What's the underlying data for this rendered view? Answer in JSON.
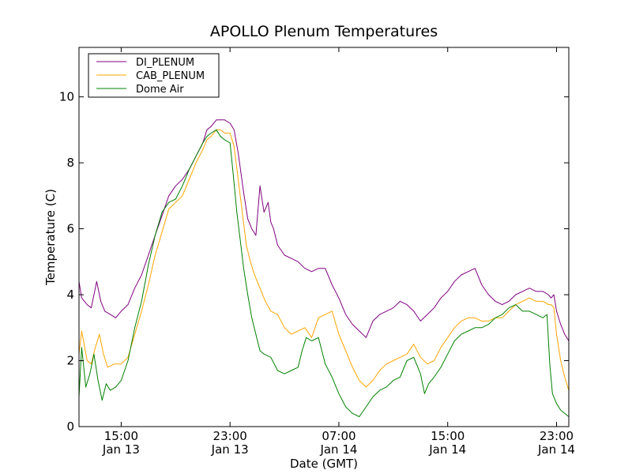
{
  "chart_data": {
    "type": "line",
    "title": "APOLLO Plenum Temperatures",
    "xlabel": "Date (GMT)",
    "ylabel": "Temperature (C)",
    "xlim": [
      11.9,
      47.9
    ],
    "ylim": [
      0,
      11.5
    ],
    "grid": false,
    "legend_position": "top-left",
    "y_ticks": [
      0,
      2,
      4,
      6,
      8,
      10
    ],
    "x_ticks": [
      {
        "x": 15,
        "time": "15:00",
        "date": "Jan 13"
      },
      {
        "x": 23,
        "time": "23:00",
        "date": "Jan 13"
      },
      {
        "x": 31,
        "time": "07:00",
        "date": "Jan 14"
      },
      {
        "x": 39,
        "time": "15:00",
        "date": "Jan 14"
      },
      {
        "x": 47,
        "time": "23:00",
        "date": "Jan 14"
      }
    ],
    "series": [
      {
        "name": "DI_PLENUM",
        "color": "#800080",
        "x": [
          11.9,
          12.1,
          12.5,
          12.8,
          13.2,
          13.5,
          13.8,
          14.2,
          14.6,
          15.0,
          15.5,
          16.0,
          16.5,
          17.0,
          17.5,
          18.0,
          18.5,
          19.0,
          19.5,
          20.0,
          20.5,
          21.0,
          21.3,
          21.6,
          22.0,
          22.3,
          22.6,
          23.0,
          23.3,
          23.6,
          24.0,
          24.3,
          24.6,
          24.9,
          25.2,
          25.5,
          25.8,
          26.0,
          26.2,
          26.5,
          27.0,
          27.5,
          28.0,
          28.5,
          29.0,
          29.5,
          30.0,
          30.5,
          31.0,
          31.5,
          32.0,
          32.5,
          33.0,
          33.5,
          34.0,
          34.5,
          35.0,
          35.5,
          36.0,
          36.5,
          37.0,
          37.5,
          38.0,
          38.5,
          39.0,
          39.5,
          40.0,
          40.5,
          41.0,
          41.5,
          42.0,
          42.5,
          43.0,
          43.5,
          44.0,
          44.5,
          45.0,
          45.5,
          46.0,
          46.4,
          46.6,
          46.8,
          47.0,
          47.3,
          47.6,
          47.9
        ],
        "y": [
          4.4,
          3.9,
          3.7,
          3.6,
          4.4,
          3.8,
          3.5,
          3.4,
          3.3,
          3.5,
          3.7,
          4.2,
          4.6,
          5.2,
          5.8,
          6.4,
          7.0,
          7.3,
          7.5,
          7.8,
          8.2,
          8.6,
          9.0,
          9.1,
          9.3,
          9.3,
          9.3,
          9.2,
          9.0,
          8.3,
          7.1,
          6.3,
          6.0,
          5.8,
          7.3,
          6.5,
          6.8,
          6.2,
          6.0,
          5.5,
          5.2,
          5.1,
          5.0,
          4.8,
          4.7,
          4.8,
          4.8,
          4.3,
          3.9,
          3.4,
          3.1,
          2.9,
          2.7,
          3.2,
          3.4,
          3.5,
          3.6,
          3.8,
          3.7,
          3.5,
          3.2,
          3.4,
          3.6,
          3.9,
          4.1,
          4.4,
          4.6,
          4.7,
          4.8,
          4.3,
          4.0,
          3.8,
          3.7,
          3.8,
          4.0,
          4.1,
          4.2,
          4.1,
          4.1,
          4.0,
          3.9,
          4.0,
          3.5,
          3.1,
          2.8,
          2.6
        ]
      },
      {
        "name": "CAB_PLENUM",
        "color": "#FFA500",
        "x": [
          11.9,
          12.1,
          12.5,
          12.8,
          13.1,
          13.4,
          13.7,
          14.0,
          14.5,
          15.0,
          15.5,
          16.0,
          16.5,
          17.0,
          17.5,
          18.0,
          18.5,
          19.0,
          19.5,
          20.0,
          20.5,
          21.0,
          21.3,
          21.6,
          22.0,
          22.3,
          22.6,
          23.0,
          23.3,
          23.6,
          23.9,
          24.2,
          24.5,
          24.8,
          25.2,
          25.6,
          26.0,
          26.5,
          27.0,
          27.5,
          28.0,
          28.5,
          29.0,
          29.5,
          30.0,
          30.5,
          31.0,
          31.5,
          32.0,
          32.5,
          33.0,
          33.5,
          34.0,
          34.5,
          35.0,
          35.5,
          36.0,
          36.5,
          37.0,
          37.5,
          38.0,
          38.5,
          39.0,
          39.5,
          40.0,
          40.5,
          41.0,
          41.5,
          42.0,
          42.5,
          43.0,
          43.5,
          44.0,
          44.5,
          45.0,
          45.5,
          46.0,
          46.4,
          46.6,
          46.8,
          47.0,
          47.3,
          47.6,
          47.9
        ],
        "y": [
          2.2,
          2.9,
          2.0,
          1.9,
          2.4,
          2.8,
          2.2,
          1.8,
          1.9,
          1.9,
          2.1,
          2.8,
          3.5,
          4.3,
          5.2,
          5.9,
          6.6,
          6.8,
          7.0,
          7.5,
          8.0,
          8.4,
          8.7,
          8.8,
          9.0,
          9.0,
          8.9,
          8.9,
          8.5,
          7.5,
          6.5,
          5.5,
          5.0,
          4.6,
          4.2,
          3.8,
          3.5,
          3.4,
          3.0,
          2.8,
          2.9,
          3.0,
          2.7,
          3.3,
          3.4,
          3.5,
          2.8,
          2.3,
          1.8,
          1.4,
          1.2,
          1.4,
          1.7,
          1.9,
          2.0,
          2.1,
          2.2,
          2.5,
          2.1,
          1.9,
          2.0,
          2.4,
          2.7,
          3.0,
          3.2,
          3.3,
          3.3,
          3.2,
          3.2,
          3.3,
          3.3,
          3.5,
          3.7,
          3.8,
          3.9,
          3.8,
          3.8,
          3.7,
          3.7,
          3.6,
          2.8,
          2.0,
          1.5,
          1.1
        ]
      },
      {
        "name": "Dome Air",
        "color": "#008000",
        "x": [
          11.9,
          12.1,
          12.4,
          12.7,
          13.0,
          13.3,
          13.6,
          13.9,
          14.2,
          14.6,
          15.0,
          15.5,
          16.0,
          16.5,
          17.0,
          17.5,
          18.0,
          18.5,
          19.0,
          19.5,
          20.0,
          20.5,
          21.0,
          21.3,
          21.6,
          22.0,
          22.3,
          22.6,
          23.0,
          23.2,
          23.5,
          23.8,
          24.0,
          24.3,
          24.6,
          24.9,
          25.2,
          25.5,
          26.0,
          26.5,
          27.0,
          27.5,
          28.0,
          28.3,
          28.6,
          29.0,
          29.5,
          30.0,
          30.5,
          31.0,
          31.5,
          32.0,
          32.5,
          33.0,
          33.5,
          34.0,
          34.5,
          35.0,
          35.5,
          36.0,
          36.5,
          37.0,
          37.3,
          37.6,
          38.0,
          38.5,
          39.0,
          39.5,
          40.0,
          40.5,
          41.0,
          41.5,
          42.0,
          42.5,
          43.0,
          43.5,
          44.0,
          44.5,
          45.0,
          45.5,
          46.0,
          46.3,
          46.5,
          46.7,
          47.0,
          47.3,
          47.6,
          47.9
        ],
        "y": [
          0.9,
          2.4,
          1.2,
          1.6,
          2.2,
          1.4,
          0.8,
          1.3,
          1.1,
          1.2,
          1.4,
          2.0,
          3.0,
          3.8,
          4.9,
          5.8,
          6.5,
          6.8,
          6.9,
          7.3,
          7.8,
          8.2,
          8.6,
          8.8,
          8.9,
          9.0,
          8.8,
          8.7,
          8.6,
          7.8,
          6.5,
          5.5,
          4.8,
          4.0,
          3.3,
          2.8,
          2.3,
          2.2,
          2.1,
          1.7,
          1.6,
          1.7,
          1.8,
          2.3,
          2.7,
          2.6,
          2.7,
          1.9,
          1.5,
          1.0,
          0.6,
          0.4,
          0.3,
          0.6,
          0.9,
          1.1,
          1.2,
          1.4,
          1.5,
          2.0,
          2.1,
          1.6,
          1.0,
          1.3,
          1.5,
          1.8,
          2.2,
          2.6,
          2.8,
          2.9,
          3.0,
          3.0,
          3.1,
          3.3,
          3.4,
          3.6,
          3.7,
          3.5,
          3.5,
          3.4,
          3.3,
          3.4,
          1.9,
          1.0,
          0.7,
          0.5,
          0.4,
          0.3
        ]
      }
    ]
  }
}
